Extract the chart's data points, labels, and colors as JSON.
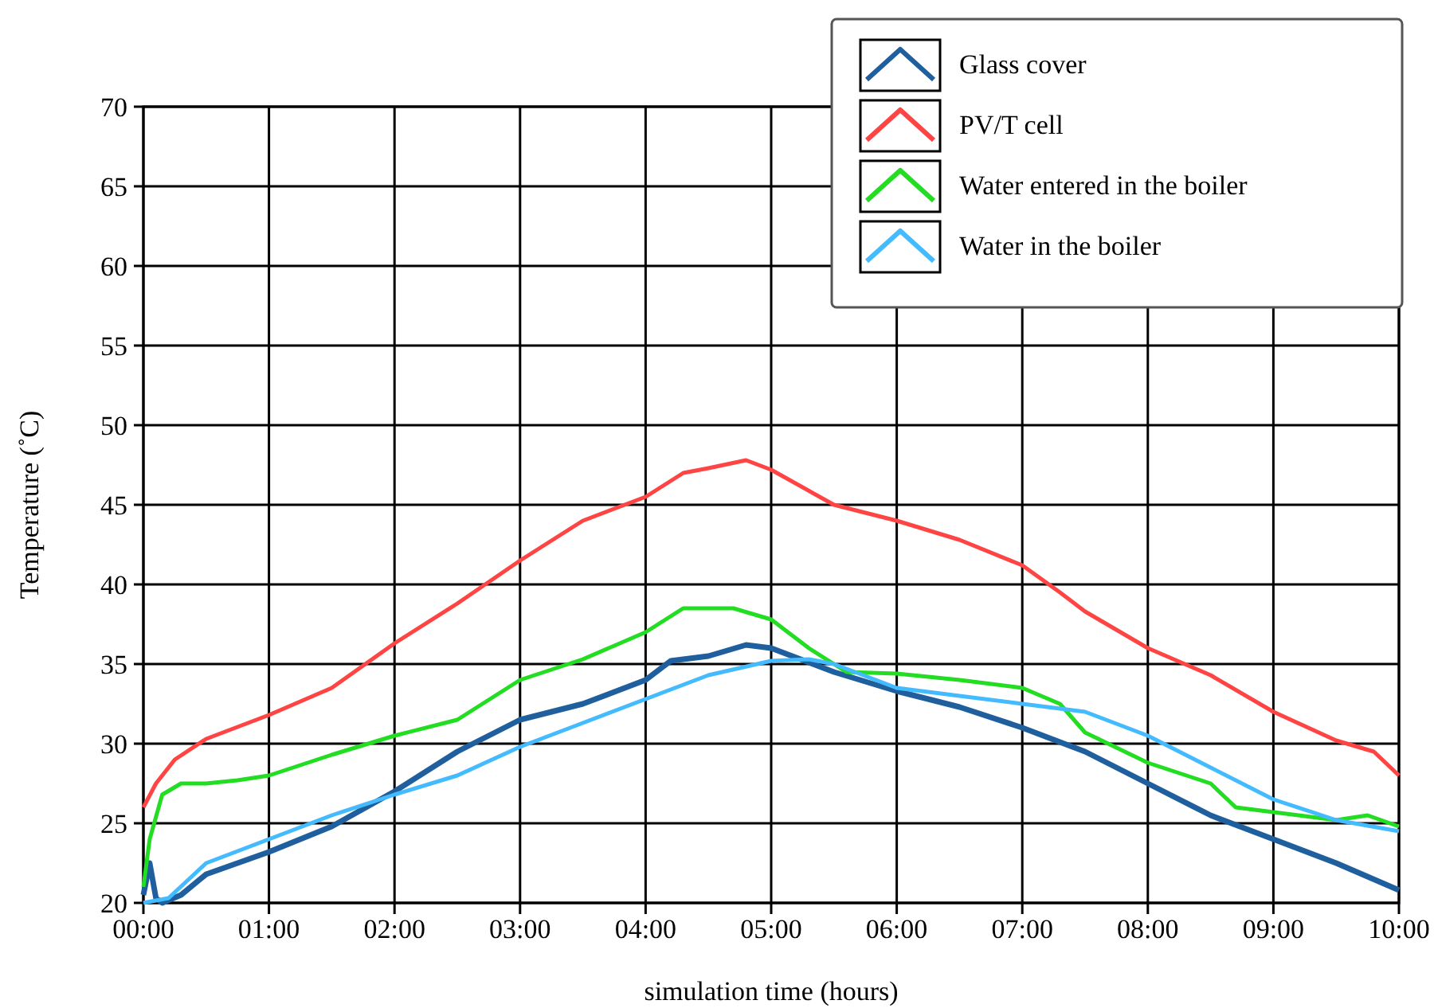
{
  "chart_data": {
    "type": "line",
    "xlabel": "simulation time (hours)",
    "ylabel": "Temperature (˚C)",
    "xlim": [
      0,
      10
    ],
    "ylim": [
      20,
      70
    ],
    "xticks": [
      {
        "value": 0,
        "label": "00:00"
      },
      {
        "value": 1,
        "label": "01:00"
      },
      {
        "value": 2,
        "label": "02:00"
      },
      {
        "value": 3,
        "label": "03:00"
      },
      {
        "value": 4,
        "label": "04:00"
      },
      {
        "value": 5,
        "label": "05:00"
      },
      {
        "value": 6,
        "label": "06:00"
      },
      {
        "value": 7,
        "label": "07:00"
      },
      {
        "value": 8,
        "label": "08:00"
      },
      {
        "value": 9,
        "label": "09:00"
      },
      {
        "value": 10,
        "label": "10:00"
      }
    ],
    "yticks": [
      20,
      25,
      30,
      35,
      40,
      45,
      50,
      55,
      60,
      65,
      70
    ],
    "grid": true,
    "legend": "top right",
    "line_style": "solid",
    "marker": "none",
    "series": [
      {
        "name": "Glass cover",
        "color": "#1f5f9e",
        "x": [
          0,
          0.05,
          0.1,
          0.15,
          0.3,
          0.5,
          1,
          1.5,
          2,
          2.5,
          3,
          3.5,
          4,
          4.2,
          4.5,
          4.8,
          5,
          5.5,
          6,
          6.5,
          7,
          7.5,
          8,
          8.5,
          9,
          9.5,
          10
        ],
        "values": [
          20.5,
          22.5,
          20.3,
          20,
          20.5,
          21.8,
          23.2,
          24.8,
          27,
          29.5,
          31.5,
          32.5,
          34,
          35.2,
          35.5,
          36.2,
          36,
          34.5,
          33.3,
          32.3,
          31,
          29.5,
          27.5,
          25.5,
          24,
          22.5,
          20.8
        ]
      },
      {
        "name": "PV/T cell",
        "color": "#ff4444",
        "x": [
          0,
          0.1,
          0.25,
          0.5,
          1,
          1.5,
          2,
          2.5,
          3,
          3.5,
          4,
          4.3,
          4.5,
          4.8,
          5,
          5.5,
          6,
          6.5,
          7,
          7.3,
          7.5,
          8,
          8.5,
          9,
          9.5,
          9.8,
          10
        ],
        "values": [
          26,
          27.5,
          29,
          30.3,
          31.8,
          33.5,
          36.3,
          38.8,
          41.5,
          44,
          45.5,
          47,
          47.3,
          47.8,
          47.2,
          45,
          44,
          42.8,
          41.2,
          39.5,
          38.3,
          36,
          34.3,
          32,
          30.2,
          29.5,
          28
        ]
      },
      {
        "name": "Water entered in the boiler",
        "color": "#22dd22",
        "x": [
          0,
          0.05,
          0.15,
          0.3,
          0.5,
          0.75,
          1,
          1.5,
          2,
          2.5,
          3,
          3.5,
          4,
          4.3,
          4.7,
          5,
          5.3,
          5.6,
          6,
          6.5,
          7,
          7.3,
          7.5,
          8,
          8.5,
          8.7,
          9,
          9.5,
          9.75,
          10
        ],
        "values": [
          21,
          24,
          26.8,
          27.5,
          27.5,
          27.7,
          28,
          29.3,
          30.5,
          31.5,
          34,
          35.3,
          37,
          38.5,
          38.5,
          37.8,
          36,
          34.5,
          34.4,
          34,
          33.5,
          32.5,
          30.7,
          28.8,
          27.5,
          26,
          25.7,
          25.2,
          25.5,
          24.8
        ]
      },
      {
        "name": "Water in the boiler",
        "color": "#44bbff",
        "x": [
          0,
          0.2,
          0.5,
          1,
          1.5,
          2,
          2.5,
          3,
          3.5,
          4,
          4.5,
          5,
          5.3,
          5.5,
          6,
          6.5,
          7,
          7.5,
          8,
          8.5,
          9,
          9.5,
          10
        ],
        "values": [
          20,
          20.3,
          22.5,
          24,
          25.5,
          26.8,
          28,
          29.8,
          31.3,
          32.8,
          34.3,
          35.2,
          35.3,
          35,
          33.5,
          33,
          32.5,
          32,
          30.5,
          28.5,
          26.5,
          25.2,
          24.5
        ]
      }
    ]
  }
}
